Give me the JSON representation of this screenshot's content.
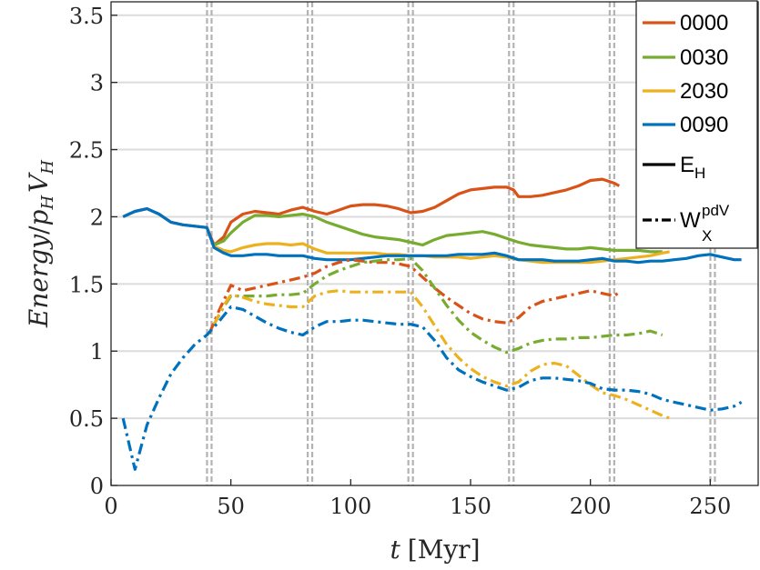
{
  "chart_data": {
    "type": "line",
    "title": "",
    "xlabel": "t [Myr]",
    "xlabel_symbol": "t",
    "xlabel_unit": "[Myr]",
    "ylabel": "Energy/p_H V_H",
    "xlim": [
      0,
      270
    ],
    "ylim": [
      0,
      3.6
    ],
    "xticks": [
      0,
      50,
      100,
      150,
      200,
      250
    ],
    "yticks": [
      0,
      0.5,
      1,
      1.5,
      2,
      2.5,
      3,
      3.5
    ],
    "grid": "horizontal",
    "legend_position": "top-right",
    "vertical_markers": [
      41,
      83,
      125,
      167,
      209,
      251
    ],
    "colors": {
      "0000": "#D95319",
      "0030": "#77AC30",
      "2030": "#EDB120",
      "0090": "#0072BD",
      "marker": "#b3b3b3"
    },
    "legend": {
      "series": [
        "0000",
        "0030",
        "2030",
        "0090"
      ],
      "styles": [
        {
          "base": "E",
          "sub": "H",
          "sup": "",
          "dash": "solid"
        },
        {
          "base": "W",
          "sub": "X",
          "sup": "pdV",
          "dash": "dashdot"
        }
      ]
    },
    "series": [
      {
        "name": "0000",
        "quantity": "E_H",
        "dash": "solid",
        "x": [
          5,
          10,
          15,
          20,
          25,
          30,
          35,
          40,
          43,
          47,
          50,
          55,
          60,
          65,
          70,
          75,
          80,
          85,
          90,
          95,
          100,
          105,
          110,
          115,
          120,
          125,
          130,
          135,
          140,
          145,
          150,
          155,
          160,
          165,
          168,
          170,
          175,
          180,
          185,
          190,
          195,
          200,
          205,
          210,
          212
        ],
        "y": [
          2.0,
          2.04,
          2.06,
          2.02,
          1.96,
          1.94,
          1.93,
          1.92,
          1.79,
          1.85,
          1.96,
          2.02,
          2.04,
          2.03,
          2.02,
          2.05,
          2.07,
          2.04,
          2.02,
          2.05,
          2.08,
          2.09,
          2.09,
          2.08,
          2.06,
          2.03,
          2.04,
          2.07,
          2.12,
          2.17,
          2.2,
          2.21,
          2.22,
          2.22,
          2.2,
          2.15,
          2.15,
          2.16,
          2.18,
          2.2,
          2.23,
          2.27,
          2.28,
          2.25,
          2.23
        ]
      },
      {
        "name": "0030",
        "quantity": "E_H",
        "dash": "solid",
        "x": [
          43,
          47,
          50,
          55,
          60,
          65,
          70,
          75,
          80,
          85,
          90,
          95,
          100,
          105,
          110,
          115,
          120,
          125,
          130,
          135,
          140,
          145,
          150,
          155,
          160,
          165,
          170,
          175,
          180,
          185,
          190,
          195,
          200,
          205,
          210,
          215,
          220,
          225,
          230
        ],
        "y": [
          1.79,
          1.82,
          1.88,
          1.96,
          2.01,
          2.01,
          2.0,
          2.01,
          2.02,
          2.0,
          1.96,
          1.93,
          1.9,
          1.87,
          1.85,
          1.84,
          1.83,
          1.81,
          1.79,
          1.83,
          1.86,
          1.87,
          1.88,
          1.89,
          1.87,
          1.84,
          1.81,
          1.79,
          1.78,
          1.77,
          1.76,
          1.76,
          1.77,
          1.76,
          1.75,
          1.75,
          1.75,
          1.74,
          1.74
        ]
      },
      {
        "name": "2030",
        "quantity": "E_H",
        "dash": "solid",
        "x": [
          43,
          47,
          50,
          55,
          60,
          65,
          70,
          75,
          80,
          85,
          90,
          95,
          100,
          105,
          110,
          115,
          120,
          125,
          130,
          135,
          140,
          145,
          150,
          155,
          160,
          165,
          170,
          175,
          180,
          185,
          190,
          195,
          200,
          205,
          210,
          215,
          220,
          225,
          230,
          233
        ],
        "y": [
          1.78,
          1.75,
          1.74,
          1.77,
          1.79,
          1.8,
          1.8,
          1.79,
          1.8,
          1.76,
          1.73,
          1.73,
          1.73,
          1.73,
          1.73,
          1.72,
          1.72,
          1.71,
          1.71,
          1.7,
          1.7,
          1.7,
          1.69,
          1.7,
          1.71,
          1.7,
          1.68,
          1.67,
          1.66,
          1.66,
          1.66,
          1.66,
          1.66,
          1.67,
          1.68,
          1.69,
          1.7,
          1.71,
          1.73,
          1.74
        ]
      },
      {
        "name": "0090",
        "quantity": "E_H",
        "dash": "solid",
        "x": [
          5,
          10,
          15,
          20,
          25,
          30,
          35,
          40,
          43,
          47,
          50,
          55,
          60,
          65,
          70,
          75,
          80,
          85,
          90,
          95,
          100,
          105,
          110,
          115,
          120,
          125,
          130,
          135,
          140,
          145,
          150,
          155,
          160,
          165,
          170,
          175,
          180,
          185,
          190,
          195,
          200,
          205,
          210,
          215,
          220,
          225,
          230,
          235,
          240,
          245,
          250,
          255,
          260,
          263
        ],
        "y": [
          2.0,
          2.04,
          2.06,
          2.02,
          1.96,
          1.94,
          1.93,
          1.92,
          1.77,
          1.73,
          1.71,
          1.71,
          1.72,
          1.72,
          1.71,
          1.71,
          1.71,
          1.69,
          1.68,
          1.68,
          1.68,
          1.69,
          1.7,
          1.71,
          1.71,
          1.71,
          1.71,
          1.71,
          1.71,
          1.72,
          1.72,
          1.72,
          1.73,
          1.71,
          1.68,
          1.68,
          1.68,
          1.67,
          1.67,
          1.67,
          1.68,
          1.69,
          1.67,
          1.67,
          1.66,
          1.67,
          1.67,
          1.68,
          1.69,
          1.71,
          1.72,
          1.7,
          1.68,
          1.68
        ]
      },
      {
        "name": "0000",
        "quantity": "W_X^pdV",
        "dash": "dashdot",
        "x": [
          41,
          45,
          50,
          55,
          60,
          65,
          70,
          75,
          80,
          85,
          90,
          95,
          100,
          105,
          110,
          115,
          120,
          125,
          130,
          135,
          140,
          145,
          150,
          155,
          160,
          165,
          170,
          175,
          180,
          185,
          190,
          195,
          200,
          205,
          210,
          212
        ],
        "y": [
          1.13,
          1.3,
          1.49,
          1.45,
          1.47,
          1.49,
          1.51,
          1.53,
          1.55,
          1.58,
          1.63,
          1.66,
          1.68,
          1.67,
          1.66,
          1.66,
          1.65,
          1.63,
          1.55,
          1.47,
          1.4,
          1.34,
          1.28,
          1.24,
          1.22,
          1.21,
          1.25,
          1.33,
          1.37,
          1.39,
          1.41,
          1.43,
          1.45,
          1.43,
          1.41,
          1.44
        ]
      },
      {
        "name": "0030",
        "quantity": "W_X^pdV",
        "dash": "dashdot",
        "x": [
          43,
          47,
          50,
          55,
          60,
          65,
          70,
          75,
          80,
          85,
          90,
          95,
          100,
          105,
          110,
          115,
          120,
          125,
          130,
          135,
          140,
          145,
          150,
          155,
          160,
          165,
          170,
          175,
          180,
          185,
          190,
          195,
          200,
          205,
          210,
          215,
          220,
          225,
          230
        ],
        "y": [
          1.2,
          1.33,
          1.41,
          1.41,
          1.41,
          1.41,
          1.42,
          1.42,
          1.43,
          1.5,
          1.56,
          1.6,
          1.63,
          1.66,
          1.67,
          1.68,
          1.68,
          1.69,
          1.6,
          1.47,
          1.34,
          1.23,
          1.14,
          1.08,
          1.03,
          0.99,
          1.02,
          1.06,
          1.08,
          1.09,
          1.09,
          1.1,
          1.1,
          1.11,
          1.12,
          1.12,
          1.13,
          1.15,
          1.12
        ]
      },
      {
        "name": "2030",
        "quantity": "W_X^pdV",
        "dash": "dashdot",
        "x": [
          43,
          47,
          50,
          55,
          60,
          65,
          70,
          75,
          80,
          85,
          90,
          95,
          100,
          105,
          110,
          115,
          120,
          125,
          130,
          135,
          140,
          145,
          150,
          155,
          160,
          165,
          170,
          175,
          180,
          185,
          190,
          195,
          200,
          205,
          210,
          215,
          220,
          225,
          230,
          233
        ],
        "y": [
          1.2,
          1.34,
          1.42,
          1.4,
          1.37,
          1.35,
          1.34,
          1.33,
          1.33,
          1.41,
          1.44,
          1.45,
          1.44,
          1.44,
          1.44,
          1.44,
          1.44,
          1.44,
          1.33,
          1.19,
          1.05,
          0.95,
          0.87,
          0.81,
          0.77,
          0.74,
          0.77,
          0.85,
          0.9,
          0.91,
          0.89,
          0.82,
          0.75,
          0.69,
          0.67,
          0.64,
          0.6,
          0.56,
          0.52,
          0.5
        ]
      },
      {
        "name": "0090",
        "quantity": "W_X^pdV",
        "dash": "dashdot",
        "x": [
          5,
          10,
          15,
          20,
          25,
          30,
          35,
          40,
          45,
          50,
          55,
          60,
          65,
          70,
          75,
          80,
          85,
          90,
          95,
          100,
          105,
          110,
          115,
          120,
          125,
          130,
          135,
          140,
          145,
          150,
          155,
          160,
          165,
          170,
          175,
          180,
          185,
          190,
          195,
          200,
          205,
          210,
          215,
          220,
          225,
          230,
          235,
          240,
          245,
          250,
          255,
          260,
          263
        ],
        "y": [
          0.5,
          0.12,
          0.45,
          0.65,
          0.83,
          0.95,
          1.05,
          1.12,
          1.22,
          1.33,
          1.31,
          1.26,
          1.21,
          1.17,
          1.14,
          1.12,
          1.18,
          1.22,
          1.22,
          1.23,
          1.23,
          1.22,
          1.21,
          1.2,
          1.2,
          1.18,
          1.08,
          0.95,
          0.86,
          0.81,
          0.77,
          0.74,
          0.71,
          0.73,
          0.78,
          0.8,
          0.8,
          0.79,
          0.78,
          0.76,
          0.72,
          0.71,
          0.71,
          0.7,
          0.68,
          0.64,
          0.62,
          0.6,
          0.58,
          0.56,
          0.57,
          0.59,
          0.62
        ]
      }
    ]
  }
}
